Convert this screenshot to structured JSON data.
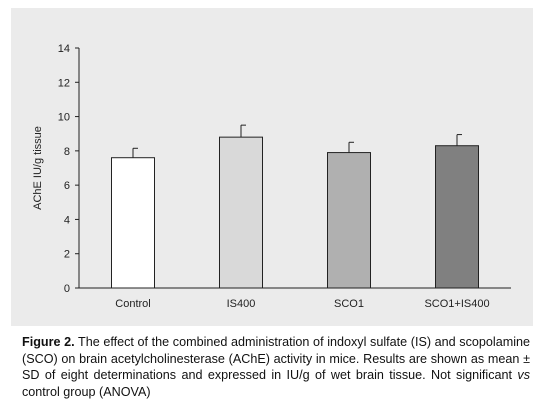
{
  "chart_data": {
    "type": "bar",
    "ylabel": "AChE IU/g tissue",
    "xlabel": "",
    "ylim": [
      0,
      14
    ],
    "yticks": [
      0,
      2,
      4,
      6,
      8,
      10,
      12,
      14
    ],
    "categories": [
      "Control",
      "IS400",
      "SCO1",
      "SCO1+IS400"
    ],
    "values": [
      7.6,
      8.8,
      7.9,
      8.3
    ],
    "errors": [
      0.55,
      0.7,
      0.6,
      0.65
    ],
    "bar_colors": [
      "#ffffff",
      "#d9d9d9",
      "#b0b0b0",
      "#808080"
    ],
    "grid": false,
    "legend": "none"
  },
  "caption": {
    "label": "Figure 2.",
    "part1": " The effect of the combined administration of indoxyl sulfate (IS) and scopolamine (SCO) on brain acetylcholinesterase (AChE) activity in mice. Results are shown as mean ± SD of eight determinations and expressed in IU/g of wet brain tissue. Not significant ",
    "vs": "vs",
    "part2": " control group (ANOVA)"
  }
}
